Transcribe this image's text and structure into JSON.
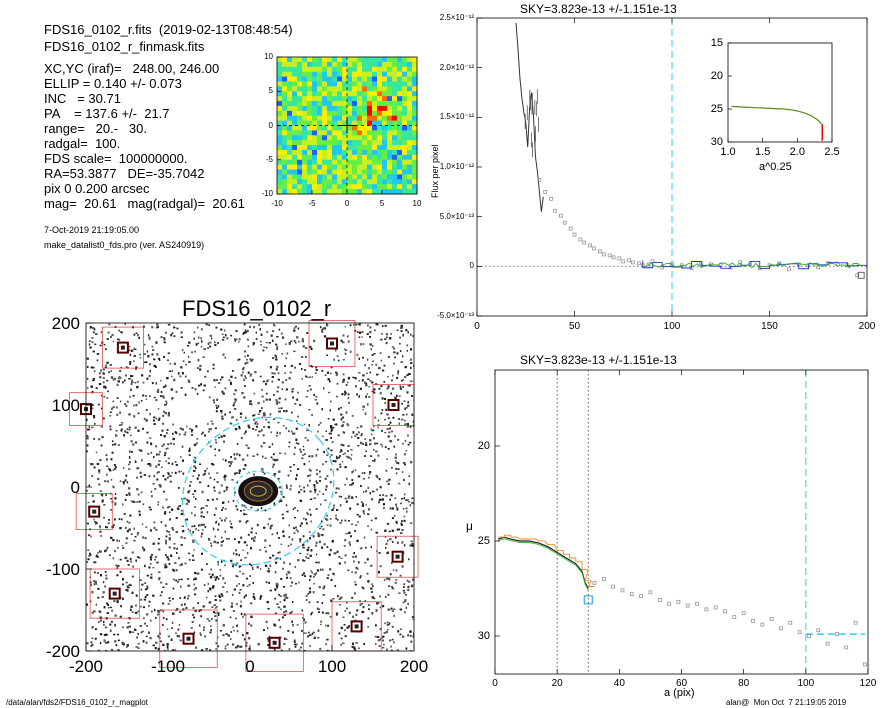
{
  "header": {
    "line1": "FDS16_0102_r.fits  (2019-02-13T08:48:54)",
    "line2": "FDS16_0102_r_finmask.fits"
  },
  "params": [
    "XC,YC (iraf)=   248.00, 246.00",
    "ELLIP = 0.140 +/- 0.073",
    "INC   = 30.71",
    "PA    = 137.6 +/-  21.7",
    "range=   20.-   30.",
    "radgal=  100.",
    "FDS scale=  100000000.",
    "RA=53.3877   DE=-35.7042",
    "pix 0 0.200 arcsec",
    "mag=  20.61   mag(radgal)=  20.61"
  ],
  "timestamp": "7-Oct-2019 21:19:05.00",
  "program": "make_datalist0_fds.pro (ver. AS240919)",
  "footer": {
    "left": "/data/alan/fds2/FDS16_0102_r_magplot",
    "right": "alan@  Mon Oct  7 21:19:05 2019"
  },
  "chart_data": [
    {
      "id": "residual_map",
      "type": "heatmap",
      "xlim": [
        -10,
        10
      ],
      "ylim": [
        -10,
        10
      ],
      "xticks": [
        "-10",
        "-5",
        "0",
        "5",
        "10"
      ],
      "yticks": [
        "10",
        "5",
        "0",
        "-5",
        "-10"
      ],
      "colormap": [
        "#1e5fff",
        "#22c7f0",
        "#37e7a0",
        "#66ee44",
        "#c8f020",
        "#ffee00",
        "#ff6a00",
        "#ff0000",
        "#ffffff"
      ]
    },
    {
      "id": "sky_profile",
      "type": "line",
      "title": "SKY=3.823e-13 +/-1.151e-13",
      "ylabel": "Flux per pixel",
      "xlim": [
        0,
        200
      ],
      "ylim": [
        -5e-13,
        2.5e-12
      ],
      "xticks": [
        "0",
        "50",
        "100",
        "150",
        "200"
      ],
      "yticks": [
        "-5.0×10⁻¹³",
        "0",
        "5.0×10⁻¹³",
        "1.0×10⁻¹²",
        "1.5×10⁻¹²",
        "2.0×10⁻¹²",
        "2.5×10⁻¹²"
      ],
      "vline_x": 100,
      "zero_line": true,
      "profile": {
        "x": [
          20,
          21,
          22,
          23,
          24,
          25,
          26,
          27,
          28,
          29,
          30,
          31,
          32,
          33,
          34
        ],
        "y": [
          2.45e-12,
          2.2e-12,
          1.9e-12,
          1.7e-12,
          1.55e-12,
          1.45e-12,
          1.2e-12,
          1.6e-12,
          1.75e-12,
          1.5e-12,
          1.1e-12,
          9.5e-13,
          7.5e-13,
          5.5e-13,
          7e-13
        ]
      },
      "points": {
        "x": [
          32,
          35,
          38,
          40,
          43,
          45,
          48,
          50,
          53,
          55,
          58,
          60,
          63,
          65,
          68,
          70,
          73,
          75,
          78,
          80,
          83,
          85,
          88,
          90,
          95,
          100,
          105,
          110,
          115,
          120,
          125,
          130,
          135,
          140,
          145,
          150,
          155,
          160,
          165,
          170,
          175,
          180,
          185,
          190,
          195
        ],
        "y": [
          8.7e-13,
          7.5e-13,
          6.8e-13,
          5.6e-13,
          5.1e-13,
          4.4e-13,
          3.8e-13,
          3.2e-13,
          2.7e-13,
          2.4e-13,
          2.1e-13,
          1.8e-13,
          1.5e-13,
          1.2e-13,
          1.1e-13,
          9e-14,
          8e-14,
          5e-14,
          6e-14,
          4e-14,
          3e-14,
          1e-14,
          2e-14,
          5e-14,
          -1e-14,
          2e-14,
          1e-14,
          -2e-14,
          3e-14,
          2e-14,
          1e-14,
          -1e-14,
          4e-14,
          2e-14,
          -2e-14,
          1e-14,
          3e-14,
          -3e-14,
          2e-14,
          1e-14,
          -1e-14,
          3e-14,
          2e-14,
          1e-14,
          -9e-14
        ]
      },
      "inset": {
        "xlabel": "a^0.25",
        "xlim": [
          1.0,
          2.5
        ],
        "ylim": [
          15,
          30
        ],
        "xticks": [
          "1.0",
          "1.5",
          "2.0",
          "2.5"
        ],
        "yticks": [
          "15",
          "20",
          "25",
          "30"
        ],
        "x": [
          1.05,
          1.2,
          1.4,
          1.6,
          1.8,
          1.9,
          2.0,
          2.1,
          2.2,
          2.3,
          2.35
        ],
        "y": [
          24.6,
          24.7,
          24.8,
          24.9,
          25.0,
          25.1,
          25.3,
          25.6,
          26.0,
          26.7,
          27.3
        ]
      }
    },
    {
      "id": "surface_brightness",
      "type": "scatter",
      "title": "SKY=3.823e-13 +/-1.151e-13",
      "xlabel": "a (pix)",
      "ylabel": "μ",
      "xlim": [
        0,
        120
      ],
      "ylim": [
        32,
        16
      ],
      "xticks": [
        "0",
        "20",
        "40",
        "60",
        "80",
        "100",
        "120"
      ],
      "yticks": [
        "20",
        "25",
        "30"
      ],
      "vlines_dotted": [
        20,
        30
      ],
      "vline_dashed": 100,
      "sky_level_mu": 29.9,
      "profile": {
        "x": [
          1,
          3,
          5,
          8,
          11,
          14,
          17,
          20,
          22,
          24,
          26,
          28,
          29,
          30
        ],
        "y": [
          24.9,
          24.8,
          24.9,
          25.0,
          25.0,
          25.1,
          25.3,
          25.6,
          25.8,
          26.0,
          26.2,
          26.6,
          27.2,
          27.5
        ]
      },
      "points": {
        "x": [
          32,
          35,
          38,
          41,
          44,
          47,
          50,
          53,
          56,
          59,
          62,
          65,
          68,
          71,
          74,
          77,
          80,
          83,
          86,
          89,
          92,
          95,
          98,
          101,
          104,
          107,
          110,
          113,
          116,
          119
        ],
        "y": [
          27.2,
          27.0,
          27.4,
          27.6,
          27.8,
          27.9,
          27.7,
          28.1,
          28.3,
          28.2,
          28.4,
          28.3,
          28.6,
          28.5,
          28.7,
          29.0,
          28.8,
          29.2,
          29.4,
          29.1,
          29.6,
          29.3,
          29.8,
          30.0,
          29.7,
          30.4,
          29.9,
          30.6,
          29.3,
          31.5
        ]
      },
      "outlier": {
        "x": 30,
        "y": 28.1
      }
    },
    {
      "id": "galaxy_image",
      "type": "heatmap",
      "title": "FDS16_0102_r",
      "xlim": [
        -200,
        200
      ],
      "ylim": [
        -200,
        200
      ],
      "xticks": [
        "-200",
        "-100",
        "0",
        "100",
        "200"
      ],
      "yticks": [
        "200",
        "100",
        "0",
        "-100",
        "-200"
      ]
    }
  ]
}
